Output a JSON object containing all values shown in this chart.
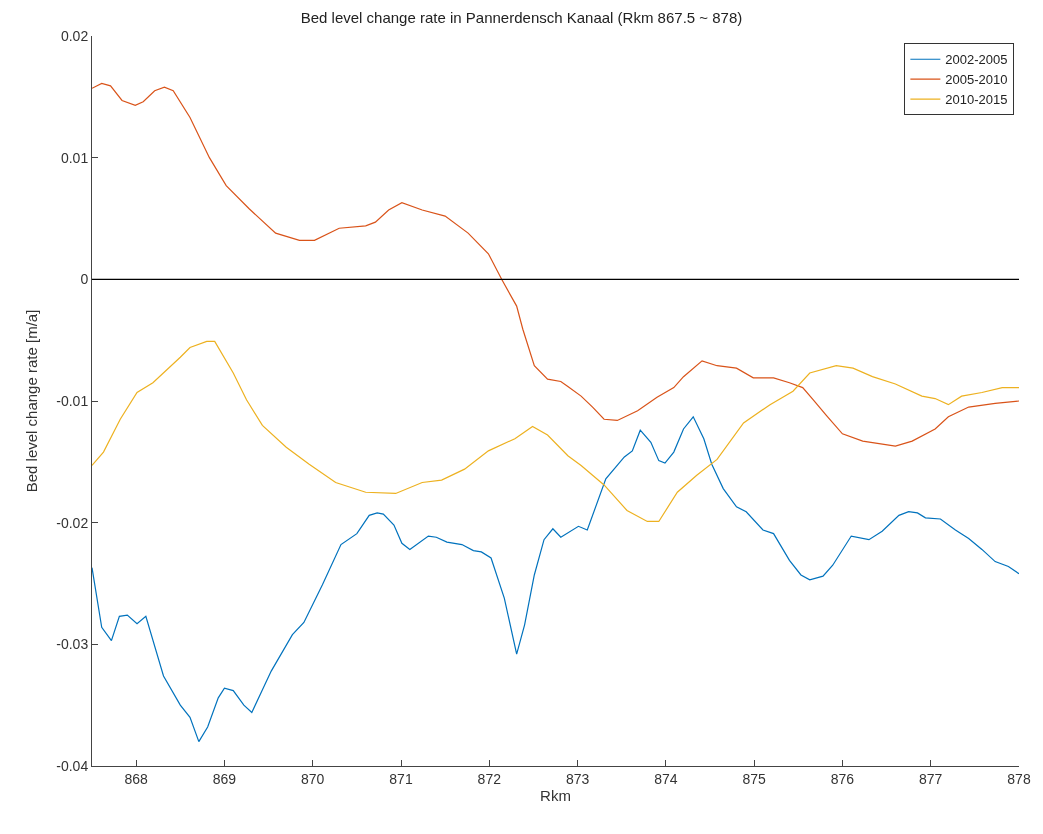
{
  "chart_data": {
    "type": "line",
    "title": "Bed level change rate in Pannerdensch Kanaal (Rkm 867.5 ~ 878)",
    "xlabel": "Rkm",
    "ylabel": "Bed level change rate [m/a]",
    "xlim": [
      867.5,
      878
    ],
    "xticks": [
      868,
      869,
      870,
      871,
      872,
      873,
      874,
      875,
      876,
      877,
      878
    ],
    "ylim": [
      -0.04,
      0.02
    ],
    "yticks": [
      {
        "value": -0.04,
        "label": "-0.04"
      },
      {
        "value": -0.03,
        "label": "-0.03"
      },
      {
        "value": -0.02,
        "label": "-0.02"
      },
      {
        "value": -0.01,
        "label": "-0.01"
      },
      {
        "value": 0,
        "label": "0"
      },
      {
        "value": 0.01,
        "label": "0.01"
      },
      {
        "value": 0.02,
        "label": "0.02"
      }
    ],
    "legend": "top right",
    "line_style": "solid",
    "marker": "none",
    "ref_lines": [
      {
        "axis": "y",
        "value": 0,
        "color": "#000000"
      }
    ],
    "series": [
      {
        "name": "2002-2005",
        "color": "#0072bd",
        "x": [
          867.5,
          867.61,
          867.72,
          867.81,
          867.9,
          868.01,
          868.11,
          868.31,
          868.5,
          868.61,
          868.71,
          868.81,
          868.93,
          869.0,
          869.1,
          869.22,
          869.31,
          869.42,
          869.53,
          869.77,
          869.9,
          870.11,
          870.32,
          870.5,
          870.64,
          870.73,
          870.8,
          870.92,
          871.01,
          871.1,
          871.31,
          871.4,
          871.52,
          871.69,
          871.82,
          871.91,
          872.02,
          872.17,
          872.31,
          872.4,
          872.51,
          872.62,
          872.72,
          872.81,
          873.01,
          873.11,
          873.32,
          873.53,
          873.62,
          873.71,
          873.83,
          873.92,
          873.99,
          874.09,
          874.2,
          874.31,
          874.43,
          874.52,
          874.65,
          874.8,
          874.91,
          875.1,
          875.22,
          875.4,
          875.53,
          875.63,
          875.78,
          875.89,
          876.1,
          876.3,
          876.45,
          876.64,
          876.75,
          876.85,
          876.94,
          877.11,
          877.28,
          877.43,
          877.58,
          877.73,
          877.88,
          878.0
        ],
        "values": [
          -0.0237,
          -0.0286,
          -0.0297,
          -0.0277,
          -0.0276,
          -0.0283,
          -0.0277,
          -0.0326,
          -0.035,
          -0.036,
          -0.038,
          -0.0368,
          -0.0344,
          -0.0336,
          -0.0338,
          -0.035,
          -0.0356,
          -0.0339,
          -0.0322,
          -0.0292,
          -0.0282,
          -0.0251,
          -0.0218,
          -0.0209,
          -0.0194,
          -0.0192,
          -0.0193,
          -0.0202,
          -0.0217,
          -0.0222,
          -0.0211,
          -0.0212,
          -0.0216,
          -0.0218,
          -0.0223,
          -0.0224,
          -0.0229,
          -0.0262,
          -0.0308,
          -0.0284,
          -0.0243,
          -0.0214,
          -0.0205,
          -0.0212,
          -0.0203,
          -0.0206,
          -0.0164,
          -0.0146,
          -0.0141,
          -0.0124,
          -0.0134,
          -0.0149,
          -0.0151,
          -0.0142,
          -0.0123,
          -0.0113,
          -0.0131,
          -0.0152,
          -0.0172,
          -0.0187,
          -0.0191,
          -0.0206,
          -0.0209,
          -0.0231,
          -0.0243,
          -0.0247,
          -0.0244,
          -0.0235,
          -0.0211,
          -0.0214,
          -0.0207,
          -0.0194,
          -0.0191,
          -0.0192,
          -0.0196,
          -0.0197,
          -0.0206,
          -0.0213,
          -0.0222,
          -0.0232,
          -0.0236,
          -0.0242
        ]
      },
      {
        "name": "2005-2010",
        "color": "#d95319",
        "x": [
          867.5,
          867.61,
          867.71,
          867.84,
          867.99,
          868.08,
          868.21,
          868.32,
          868.42,
          868.61,
          868.83,
          869.02,
          869.28,
          869.58,
          869.85,
          870.02,
          870.3,
          870.6,
          870.71,
          870.86,
          871.01,
          871.24,
          871.5,
          871.76,
          871.99,
          872.14,
          872.31,
          872.38,
          872.51,
          872.66,
          872.81,
          872.89,
          873.04,
          873.17,
          873.3,
          873.45,
          873.68,
          873.9,
          874.09,
          874.2,
          874.41,
          874.58,
          874.8,
          874.99,
          875.22,
          875.4,
          875.55,
          875.67,
          875.82,
          876.0,
          876.23,
          876.6,
          876.79,
          877.05,
          877.2,
          877.43,
          877.73,
          878.0
        ],
        "values": [
          0.0157,
          0.0161,
          0.0159,
          0.0147,
          0.0143,
          0.0146,
          0.0155,
          0.0158,
          0.0155,
          0.0133,
          0.01,
          0.0077,
          0.0058,
          0.0038,
          0.0032,
          0.0032,
          0.0042,
          0.0044,
          0.0047,
          0.0057,
          0.0063,
          0.0057,
          0.0052,
          0.0038,
          0.0021,
          0.0,
          -0.0022,
          -0.0041,
          -0.0071,
          -0.0082,
          -0.0084,
          -0.0088,
          -0.0096,
          -0.0105,
          -0.0115,
          -0.0116,
          -0.0108,
          -0.0097,
          -0.0089,
          -0.008,
          -0.0067,
          -0.0071,
          -0.0073,
          -0.0081,
          -0.0081,
          -0.0085,
          -0.0089,
          -0.0099,
          -0.0112,
          -0.0127,
          -0.0133,
          -0.0137,
          -0.0133,
          -0.0123,
          -0.0113,
          -0.0105,
          -0.0102,
          -0.01
        ]
      },
      {
        "name": "2010-2015",
        "color": "#edb120",
        "x": [
          867.5,
          867.63,
          867.82,
          868.01,
          868.19,
          868.5,
          868.61,
          868.8,
          868.89,
          869.1,
          869.25,
          869.43,
          869.7,
          869.96,
          870.26,
          870.6,
          870.94,
          871.24,
          871.46,
          871.72,
          871.99,
          872.29,
          872.49,
          872.66,
          872.89,
          873.04,
          873.3,
          873.56,
          873.79,
          873.92,
          874.13,
          874.35,
          874.58,
          874.88,
          875.18,
          875.44,
          875.63,
          875.93,
          876.12,
          876.34,
          876.6,
          876.9,
          877.05,
          877.2,
          877.35,
          877.58,
          877.81,
          878.0
        ],
        "values": [
          -0.0153,
          -0.0142,
          -0.0115,
          -0.0093,
          -0.0085,
          -0.0064,
          -0.0056,
          -0.0051,
          -0.0051,
          -0.0077,
          -0.0099,
          -0.012,
          -0.0138,
          -0.0152,
          -0.0167,
          -0.0175,
          -0.0176,
          -0.0167,
          -0.0165,
          -0.0156,
          -0.0141,
          -0.0131,
          -0.0121,
          -0.0128,
          -0.0145,
          -0.0153,
          -0.0169,
          -0.019,
          -0.0199,
          -0.0199,
          -0.0175,
          -0.0161,
          -0.0148,
          -0.0118,
          -0.0103,
          -0.0092,
          -0.0077,
          -0.0071,
          -0.0073,
          -0.008,
          -0.0086,
          -0.0096,
          -0.0098,
          -0.0103,
          -0.0096,
          -0.0093,
          -0.0089,
          -0.0089
        ]
      }
    ]
  }
}
